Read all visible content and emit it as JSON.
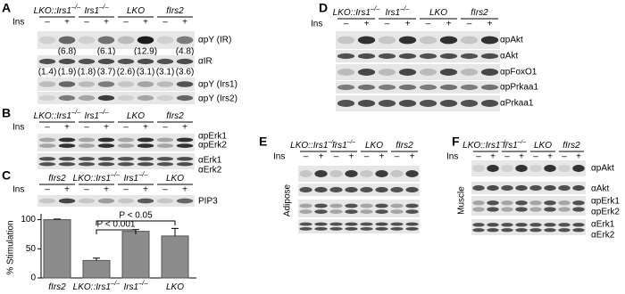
{
  "common": {
    "ins": "Ins",
    "minus": "–",
    "plus": "+"
  },
  "genotypes": {
    "lko_irs1": {
      "base": "LKO::Irs1",
      "sup": "–/–"
    },
    "irs1": {
      "base": "Irs1",
      "sup": "–/–"
    },
    "lko": {
      "base": "LKO"
    },
    "firs2": {
      "base": "fIrs2"
    }
  },
  "panels": {
    "A": {
      "label": "A",
      "blots": [
        "αpY (IR)",
        "αIR",
        "αpY (Irs1)",
        "αpY (Irs2)"
      ],
      "quant_ir": [
        "(6.8)",
        "(6.1)",
        "(12.9)",
        "(4.8)"
      ],
      "quant_total": [
        "(1.4)",
        "(1.9)",
        "(1.8)",
        "(3.7)",
        "(2.6)",
        "(3.1)",
        "(3.1)",
        "(3.6)"
      ]
    },
    "B": {
      "label": "B",
      "blots": [
        "αpErk1",
        "αpErk2",
        "αErk1",
        "αErk2"
      ]
    },
    "C": {
      "label": "C",
      "blot": "PIP3"
    },
    "D": {
      "label": "D",
      "blots": [
        "αpAkt",
        "αAkt",
        "αpFoxO1",
        "αpPrkaa1",
        "αPrkaa1"
      ]
    },
    "E": {
      "label": "E",
      "tissue": "Adipose"
    },
    "F": {
      "label": "F",
      "tissue": "Muscle",
      "blots": [
        "αpAkt",
        "αAkt",
        "αpErk1",
        "αpErk2",
        "αErk1",
        "αErk2"
      ]
    }
  },
  "chart_data": {
    "type": "bar",
    "ylabel": "% Stimulation",
    "categories": [
      "fIrs2",
      "LKO::Irs1",
      "Irs1",
      "LKO"
    ],
    "category_superscripts": [
      null,
      "–/–",
      "–/–",
      null
    ],
    "values": [
      100,
      30,
      80,
      72
    ],
    "errors": [
      1,
      4,
      3,
      13
    ],
    "color": "#8c8c8c",
    "ylim": [
      0,
      110
    ],
    "yticks": [
      0,
      50,
      100
    ],
    "annotations": [
      "P < 0.001",
      "P < 0.05"
    ]
  }
}
